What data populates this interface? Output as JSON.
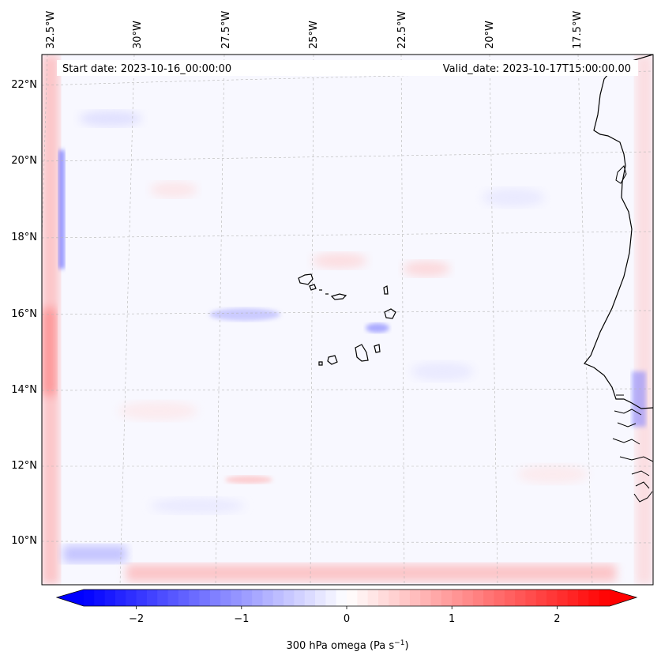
{
  "map": {
    "header": {
      "start_date": "Start date: 2023-10-16_00:00:00",
      "valid_date": "Valid_date: 2023-10-17T15:00:00.00"
    },
    "longitude_labels": [
      "32.5°W",
      "30°W",
      "27.5°W",
      "25°W",
      "22.5°W",
      "20°W",
      "17.5°W"
    ],
    "latitude_labels": [
      "22°N",
      "20°N",
      "18°N",
      "16°N",
      "14°N",
      "12°N",
      "10°N"
    ],
    "colors": {
      "negative": "#0000ff",
      "positive": "#ff0000",
      "neutral": "#ffffff",
      "gridline": "#b0b0b0",
      "coastline": "#000000"
    }
  },
  "colorbar": {
    "ticks": [
      "−2",
      "−1",
      "0",
      "1",
      "2"
    ],
    "tick_values": [
      -2,
      -1,
      0,
      1,
      2
    ],
    "range": [
      -2.5,
      2.5
    ],
    "label_main": "300 hPa omega (Pa s",
    "label_exp": "−1",
    "label_close": ")"
  }
}
